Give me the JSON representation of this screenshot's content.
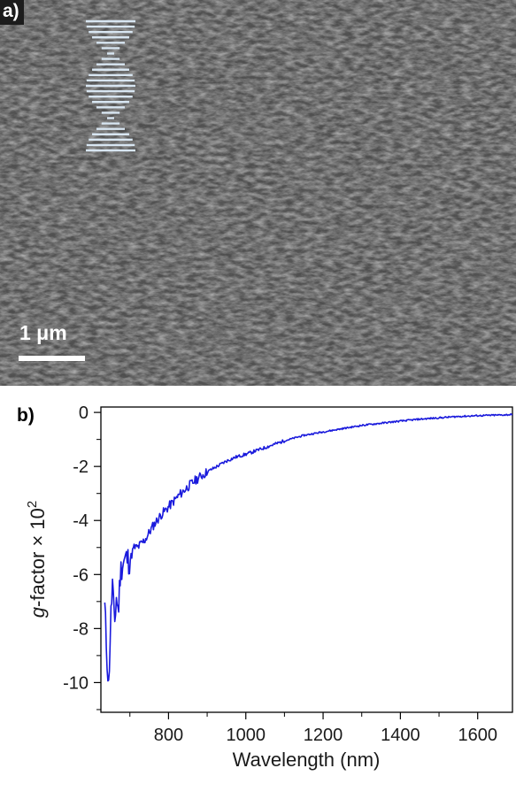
{
  "panel_a": {
    "label": "a)",
    "scale_bar_label": "1 μm",
    "kind": "SEM micrograph of porous film cross-section with helical stack schematic",
    "colors": {
      "background": "#4a4a4a",
      "schematic": "#d8e6f2"
    }
  },
  "panel_b": {
    "label": "b)"
  },
  "chart_data": {
    "type": "line",
    "title": "",
    "xlabel": "Wavelength (nm)",
    "ylabel": "g-factor × 10²",
    "ylabel_parts": {
      "italic": "g",
      "rest": "-factor × 10",
      "sup": "2"
    },
    "xlim": [
      625,
      1690
    ],
    "ylim": [
      -11.1,
      0.2
    ],
    "xticks": [
      800,
      1000,
      1200,
      1400,
      1600
    ],
    "yticks": [
      0,
      -2,
      -4,
      -6,
      -8,
      -10
    ],
    "xtick_labels": [
      "800",
      "1000",
      "1200",
      "1400",
      "1600"
    ],
    "ytick_labels": [
      "0",
      "-2",
      "-4",
      "-6",
      "-8",
      "-10"
    ],
    "grid": false,
    "legend": "none",
    "series": [
      {
        "color": "#1a1adc",
        "x": [
          635,
          640,
          645,
          650,
          655,
          660,
          665,
          670,
          675,
          680,
          690,
          700,
          710,
          720,
          740,
          760,
          780,
          800,
          825,
          850,
          875,
          900,
          925,
          950,
          975,
          1000,
          1050,
          1100,
          1150,
          1200,
          1250,
          1300,
          1350,
          1400,
          1450,
          1500,
          1550,
          1600,
          1650,
          1690
        ],
        "y": [
          -7.2,
          -8.8,
          -10.2,
          -7.8,
          -6.3,
          -8.0,
          -6.8,
          -7.4,
          -6.0,
          -5.6,
          -5.4,
          -5.5,
          -5.0,
          -5.0,
          -4.7,
          -4.2,
          -3.8,
          -3.5,
          -3.1,
          -2.75,
          -2.45,
          -2.2,
          -2.0,
          -1.8,
          -1.65,
          -1.55,
          -1.3,
          -1.05,
          -0.85,
          -0.72,
          -0.6,
          -0.48,
          -0.4,
          -0.32,
          -0.25,
          -0.2,
          -0.15,
          -0.12,
          -0.1,
          -0.08
        ]
      }
    ]
  }
}
